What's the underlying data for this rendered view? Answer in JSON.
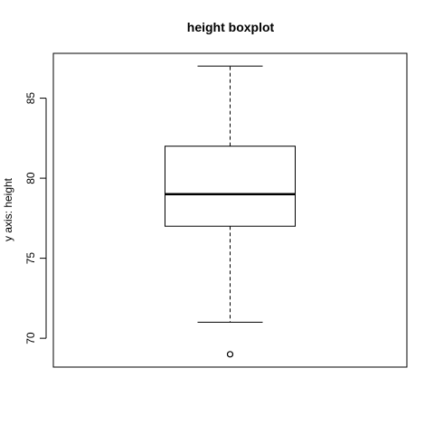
{
  "chart_data": {
    "type": "boxplot",
    "title": "height boxplot",
    "xlabel": "",
    "ylabel": "y axis: height",
    "ylim": [
      68.2,
      87.8
    ],
    "yticks": [
      70,
      75,
      80,
      85
    ],
    "ytick_labels": [
      "70",
      "75",
      "80",
      "85"
    ],
    "grid": false,
    "legend": "none",
    "box": {
      "whisker_low": 71,
      "q1": 77,
      "median": 79,
      "q3": 82,
      "whisker_high": 87,
      "outliers": [
        69
      ]
    }
  }
}
